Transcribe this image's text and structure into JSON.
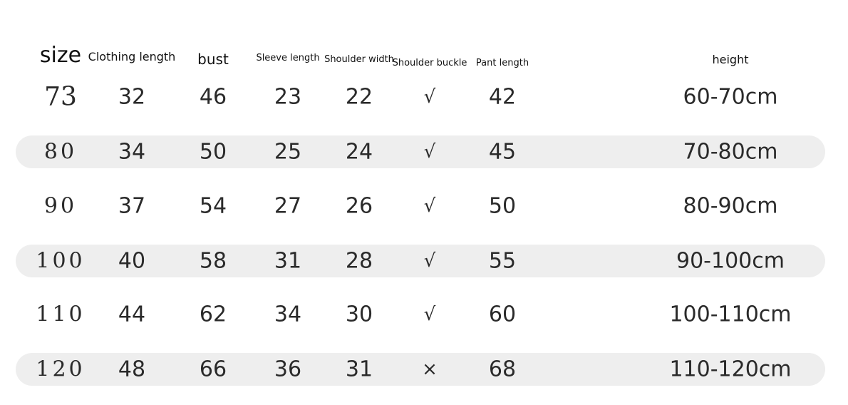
{
  "headers": [
    "size",
    "Clothing length",
    "bust",
    "Sleeve length",
    "Shoulder width",
    "Shoulder buckle",
    "Pant length",
    "height"
  ],
  "rows": [
    [
      "73",
      "32",
      "46",
      "23",
      "22",
      "√",
      "42",
      "60-70cm"
    ],
    [
      "80",
      "34",
      "50",
      "25",
      "24",
      "√",
      "45",
      "70-80cm"
    ],
    [
      "90",
      "37",
      "54",
      "27",
      "26",
      "√",
      "50",
      "80-90cm"
    ],
    [
      "100",
      "40",
      "58",
      "31",
      "28",
      "√",
      "55",
      "90-100cm"
    ],
    [
      "110",
      "44",
      "62",
      "34",
      "30",
      "√",
      "60",
      "100-110cm"
    ],
    [
      "120",
      "48",
      "66",
      "36",
      "31",
      "×",
      "68",
      "110-120cm"
    ]
  ],
  "colors": {
    "band": "#eeeeee",
    "text": "#2a2a2a"
  }
}
